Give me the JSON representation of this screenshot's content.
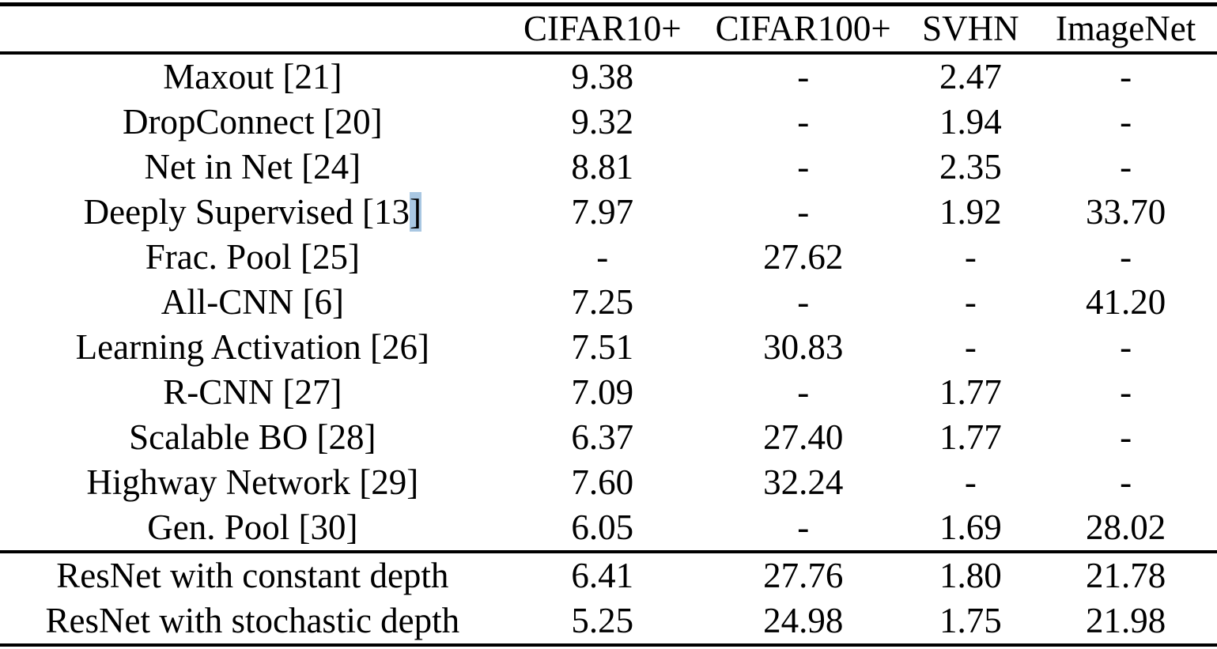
{
  "table": {
    "columns": [
      "",
      "CIFAR10+",
      "CIFAR100+",
      "SVHN",
      "ImageNet"
    ],
    "rows": [
      {
        "label": "Maxout [21]",
        "values": [
          "9.38",
          "-",
          "2.47",
          "-"
        ]
      },
      {
        "label": "DropConnect [20]",
        "values": [
          "9.32",
          "-",
          "1.94",
          "-"
        ]
      },
      {
        "label": "Net in Net [24]",
        "values": [
          "8.81",
          "-",
          "2.35",
          "-"
        ]
      },
      {
        "label": "Deeply Supervised [13",
        "highlight": "]",
        "values": [
          "7.97",
          "-",
          "1.92",
          "33.70"
        ]
      },
      {
        "label": "Frac. Pool [25]",
        "values": [
          "-",
          "27.62",
          "-",
          "-"
        ]
      },
      {
        "label": "All-CNN [6]",
        "values": [
          "7.25",
          "-",
          "-",
          "41.20"
        ]
      },
      {
        "label": "Learning Activation [26]",
        "values": [
          "7.51",
          "30.83",
          "-",
          "-"
        ]
      },
      {
        "label": "R-CNN [27]",
        "values": [
          "7.09",
          "-",
          "1.77",
          "-"
        ]
      },
      {
        "label": "Scalable BO [28]",
        "values": [
          "6.37",
          "27.40",
          "1.77",
          "-"
        ]
      },
      {
        "label": "Highway Network [29]",
        "values": [
          "7.60",
          "32.24",
          "-",
          "-"
        ]
      },
      {
        "label": "Gen. Pool [30]",
        "values": [
          "6.05",
          "-",
          "1.69",
          "28.02"
        ]
      }
    ],
    "footer_rows": [
      {
        "label": "ResNet with constant depth",
        "values": [
          "6.41",
          "27.76",
          "1.80",
          "21.78"
        ]
      },
      {
        "label": "ResNet with stochastic depth",
        "values": [
          "5.25",
          "24.98",
          "1.75",
          "21.98"
        ]
      }
    ]
  },
  "colors": {
    "text": "#000000",
    "rule": "#000000",
    "background": "#ffffff",
    "citation_highlight": "#a9c7e2"
  }
}
